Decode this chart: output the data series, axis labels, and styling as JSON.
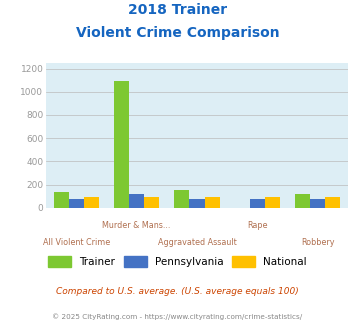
{
  "title_line1": "2018 Trainer",
  "title_line2": "Violent Crime Comparison",
  "categories": [
    "All Violent Crime",
    "Murder & Mans...",
    "Aggravated Assault",
    "Rape",
    "Robbery"
  ],
  "x_labels_top": [
    "",
    "Murder & Mans...",
    "",
    "Rape",
    ""
  ],
  "x_labels_bottom": [
    "All Violent Crime",
    "",
    "Aggravated Assault",
    "",
    "Robbery"
  ],
  "trainer": [
    140,
    1090,
    155,
    0,
    120
  ],
  "pennsylvania": [
    75,
    120,
    75,
    75,
    80
  ],
  "national": [
    95,
    90,
    95,
    95,
    90
  ],
  "trainer_color": "#7dc832",
  "pennsylvania_color": "#4472c4",
  "national_color": "#ffc000",
  "bg_color": "#ddeef5",
  "title_color": "#1565c0",
  "xlabel_top_color": "#b07050",
  "xlabel_bot_color": "#b07050",
  "ylabel_color": "#999999",
  "grid_color": "#bbbbbb",
  "ylim": [
    0,
    1250
  ],
  "yticks": [
    0,
    200,
    400,
    600,
    800,
    1000,
    1200
  ],
  "footnote1": "Compared to U.S. average. (U.S. average equals 100)",
  "footnote2": "© 2025 CityRating.com - https://www.cityrating.com/crime-statistics/",
  "bar_width": 0.25
}
